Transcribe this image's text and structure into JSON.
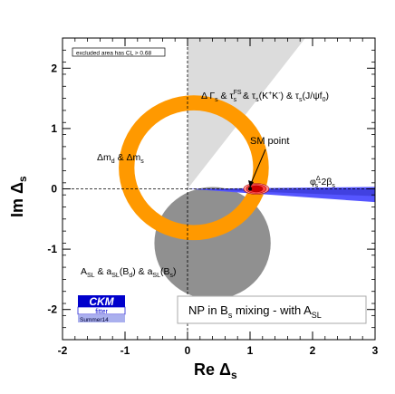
{
  "chart_data": {
    "type": "contour",
    "title": "",
    "xlabel_main": "Re Δ",
    "xlabel_sub": "s",
    "ylabel_main": "Im Δ",
    "ylabel_sub": "s",
    "xlim": [
      -2,
      3
    ],
    "ylim": [
      -2.5,
      2.5
    ],
    "xticks": [
      -2,
      -1,
      0,
      1,
      2,
      3
    ],
    "yticks": [
      -2,
      -1,
      0,
      1,
      2
    ],
    "xtick_labels": [
      "-2",
      "-1",
      "0",
      "1",
      "2",
      "3"
    ],
    "ytick_labels": [
      "-2",
      "-1",
      "0",
      "1",
      "2"
    ],
    "grid": false,
    "reference_lines": {
      "x": 0,
      "y": 0
    },
    "regions": [
      {
        "label": "Δm_d & Δm_s",
        "shape": "annulus",
        "color": "#ff9900",
        "center": [
          0.1,
          0.35
        ],
        "radius_inner": 0.95,
        "radius_outer": 1.2
      },
      {
        "label": "A_SL & a_SL(B_d) & a_SL(B_s)",
        "shape": "disk",
        "color": "#909090",
        "center": [
          0.4,
          -0.9
        ],
        "radius": 0.93
      },
      {
        "label": "ΔΓ_s & τ_s^FS & τ_s(K⁺K⁻) & τ_s(J/ψf_0)",
        "shape": "wedge",
        "color": "#dcdcdc",
        "apex": [
          0,
          0
        ],
        "angle_from_deg": 53,
        "angle_to_deg": 90
      },
      {
        "label": "φ^Δ_s - 2β_s",
        "shape": "wedge",
        "color": "#5555ff",
        "apex": [
          0,
          0
        ],
        "angle_from_deg": -4.2,
        "angle_to_deg": 0.6
      },
      {
        "label": "SM point",
        "shape": "point",
        "color": "#ff0000",
        "x": 1,
        "y": 0
      }
    ],
    "annotations": {
      "cl_note": "excluded area has CL > 0.68",
      "footer": "NP in B",
      "footer_sub": "s",
      "footer_tail": " mixing - with A",
      "footer_tail_sub": "SL",
      "summer": "Summer14"
    }
  },
  "logo": {
    "top": "CKM",
    "bottom": "fitter"
  },
  "colors": {
    "orange": "#ff9900",
    "gray_dark": "#909090",
    "gray_light": "#dcdcdc",
    "blue": "#5555ff",
    "red": "#ff0000"
  }
}
